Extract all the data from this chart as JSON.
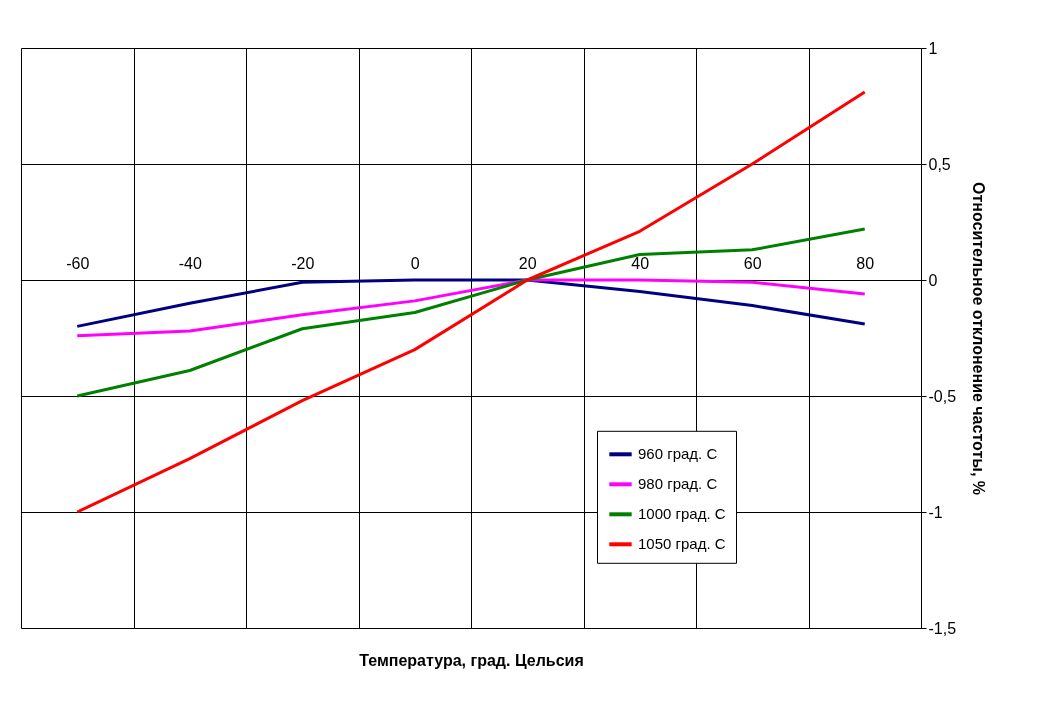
{
  "chart_data": {
    "type": "line",
    "xlabel": "Температура, град. Цельсия",
    "ylabel": "Относительное отклонение частоты, %",
    "categories": [
      "-60",
      "-40",
      "-20",
      "0",
      "20",
      "40",
      "60",
      "80"
    ],
    "series": [
      {
        "name": "960 град. С",
        "color": "#000080",
        "values": [
          -0.2,
          -0.1,
          -0.01,
          0.0,
          0.0,
          -0.05,
          -0.11,
          -0.19
        ]
      },
      {
        "name": "980 град. С",
        "color": "#ff00ff",
        "values": [
          -0.24,
          -0.22,
          -0.15,
          -0.09,
          0.0,
          0.0,
          -0.01,
          -0.06
        ]
      },
      {
        "name": "1000 град. С",
        "color": "#008000",
        "values": [
          -0.5,
          -0.39,
          -0.21,
          -0.14,
          0.0,
          0.11,
          0.13,
          0.22
        ]
      },
      {
        "name": "1050 град. С",
        "color": "#ff0000",
        "values": [
          -1.0,
          -0.77,
          -0.52,
          -0.3,
          0.0,
          0.21,
          0.5,
          0.81
        ]
      }
    ],
    "ylim": [
      -1.5,
      1
    ],
    "yticks": [
      {
        "value": -1.5,
        "label": "-1,5"
      },
      {
        "value": -1,
        "label": "-1"
      },
      {
        "value": -0.5,
        "label": "-0,5"
      },
      {
        "value": 0,
        "label": "0"
      },
      {
        "value": 0.5,
        "label": "0,5"
      },
      {
        "value": 1,
        "label": "1"
      }
    ],
    "grid": true,
    "legend": "bottom right",
    "marker": "none",
    "line_style": "solid"
  }
}
